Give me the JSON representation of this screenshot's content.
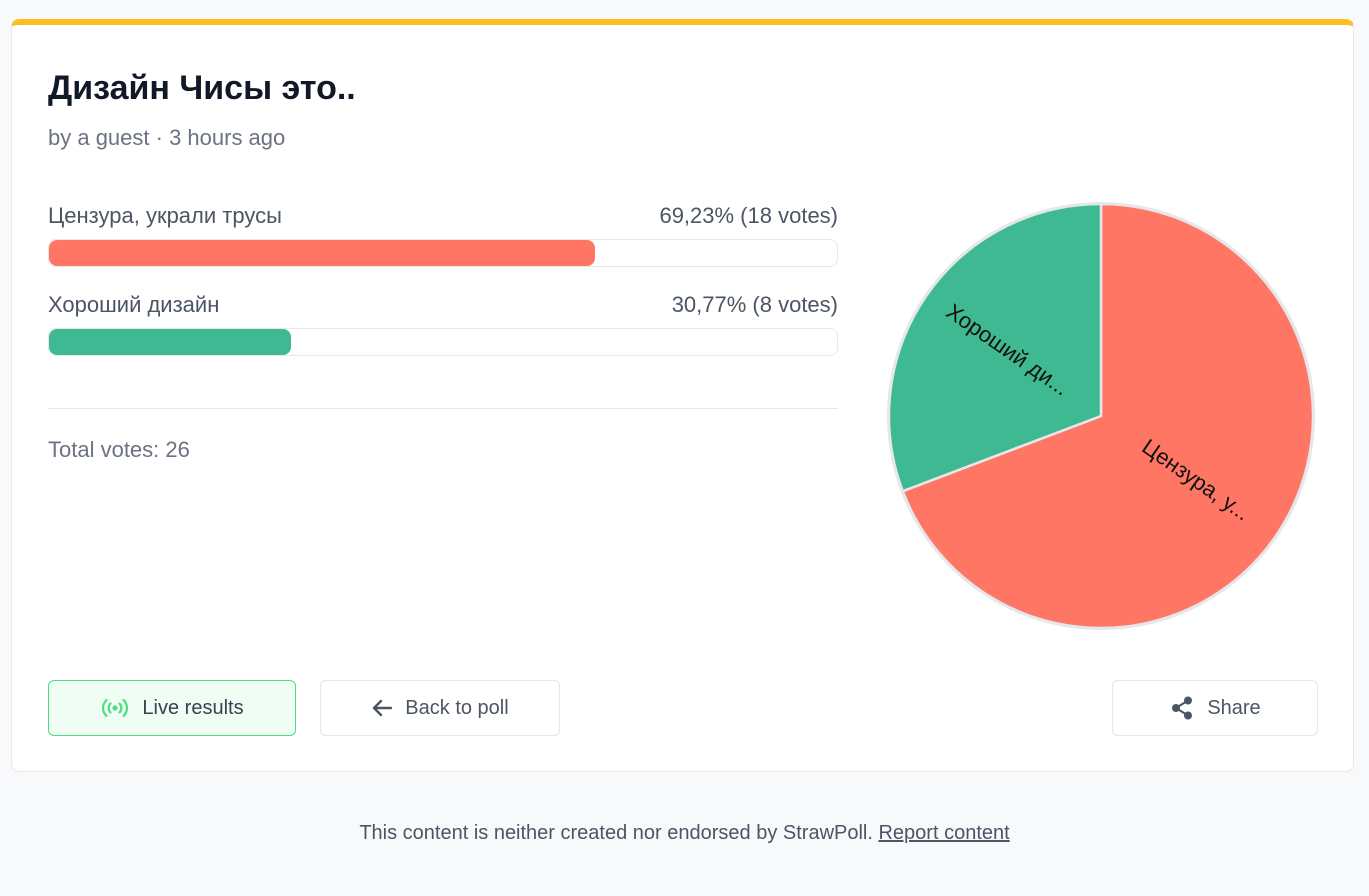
{
  "poll": {
    "title": "Дизайн Чисы это..",
    "meta": "by a guest · 3 hours ago",
    "options": [
      {
        "label": "Цензура, украли трусы",
        "result": "69,23% (18 votes)",
        "fraction": 0.6923,
        "color": "#ff7664"
      },
      {
        "label": "Хороший дизайн",
        "result": "30,77% (8 votes)",
        "fraction": 0.3077,
        "color": "#3fb992"
      }
    ],
    "total": "Total votes: 26"
  },
  "chart_data": {
    "type": "pie",
    "categories": [
      "Цензура, украли трусы",
      "Хороший дизайн"
    ],
    "values": [
      18,
      8
    ],
    "slice_labels": [
      "Цензура, у...",
      "Хороший ди..."
    ],
    "colors": [
      "#ff7664",
      "#3fb992"
    ]
  },
  "actions": {
    "live_label": "Live results",
    "back_label": "Back to poll",
    "share_label": "Share"
  },
  "icons": {
    "live": "broadcast-icon",
    "back": "arrow-left-icon",
    "share": "share-icon"
  },
  "footer": {
    "text": "This content is neither created nor endorsed by StrawPoll.",
    "link": "Report content"
  }
}
